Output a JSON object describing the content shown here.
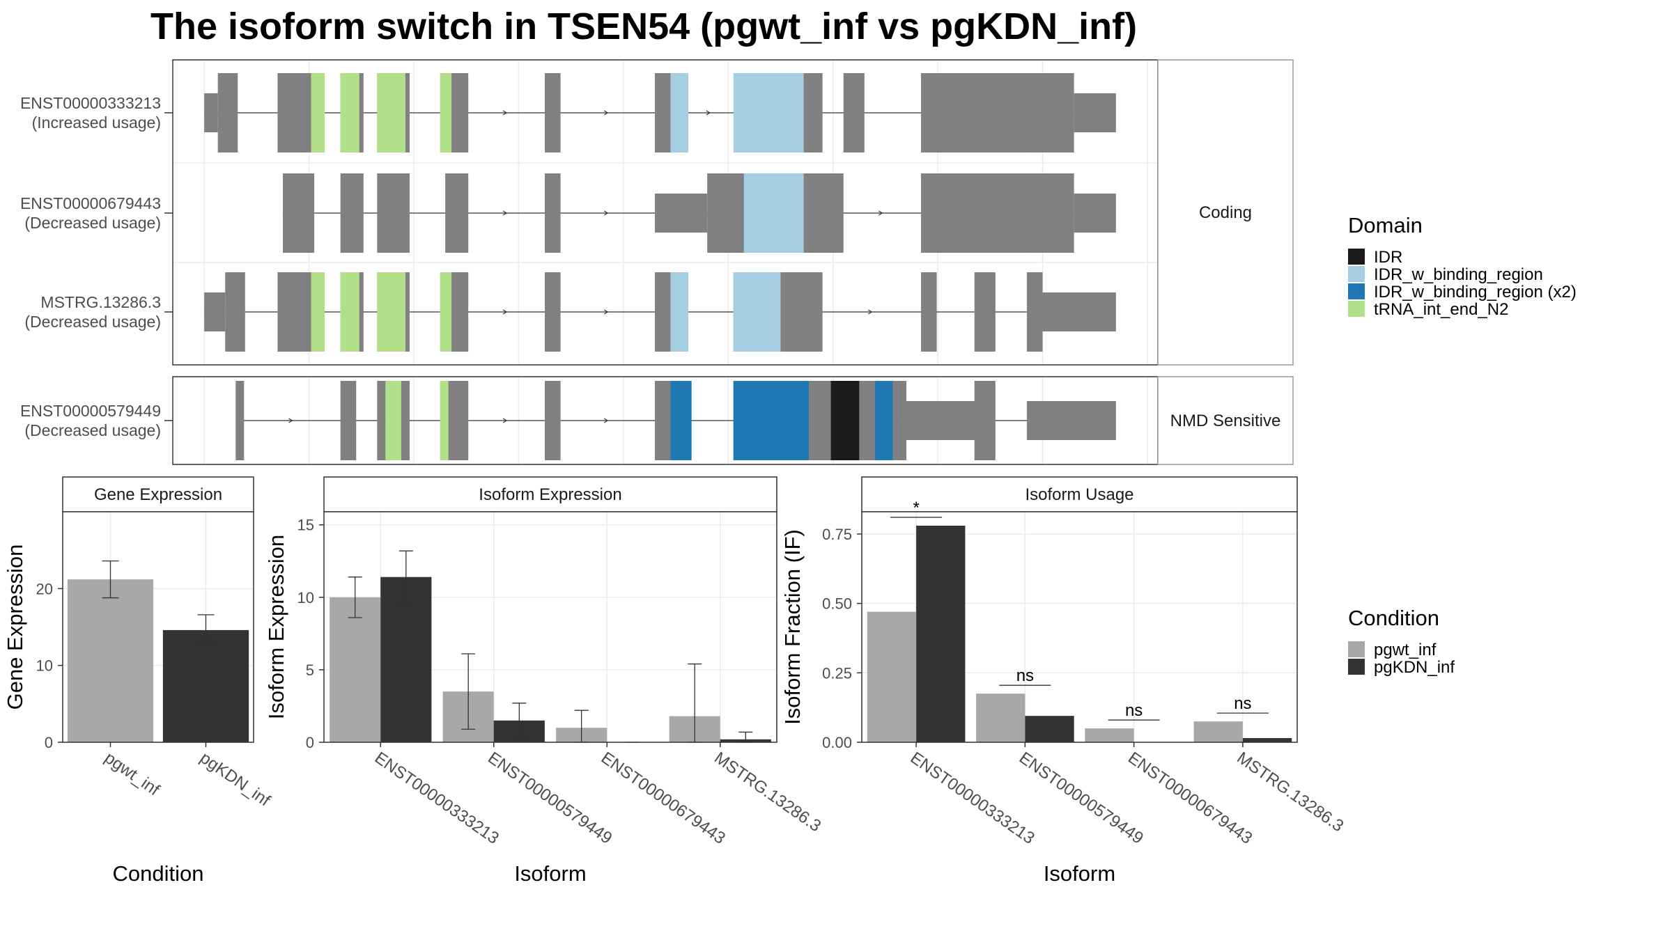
{
  "title": "The isoform switch in TSEN54 (pgwt_inf vs pgKDN_inf)",
  "colors": {
    "exon": "#808080",
    "IDR": "#1a1a1a",
    "IDR_w_binding_region": "#a6cee3",
    "IDR_w_binding_region_x2": "#1f78b4",
    "tRNA_int_end_N2": "#b2df8a",
    "pgwt_inf": "#a8a8a8",
    "pgKDN_inf": "#333333",
    "grid": "#ebebeb",
    "strip_bg": "#ffffff",
    "panel_border": "#333333"
  },
  "chart_data": [
    {
      "type": "gene_structure",
      "panels": [
        {
          "label": "Coding",
          "isoforms": [
            {
              "name": "ENST00000333213",
              "usage": "(Increased usage)",
              "utr": [
                [
                  0,
                  1.3
                ],
                [
                  83,
                  87
                ]
              ],
              "cds": [
                [
                  1.3,
                  3.2
                ],
                [
                  7,
                  10.5
                ],
                [
                  13,
                  15.2
                ],
                [
                  16.5,
                  19.6
                ],
                [
                  23,
                  25.2
                ],
                [
                  32.5,
                  34
                ],
                [
                  43,
                  44.5
                ],
                [
                  52,
                  53.5
                ],
                [
                  55.5,
                  59
                ],
                [
                  61,
                  63
                ],
                [
                  68.4,
                  78.5
                ],
                [
                  78.5,
                  83
                ]
              ],
              "domains": [
                {
                  "domain": "tRNA_int_end_N2",
                  "range": [
                    10.2,
                    11.5
                  ]
                },
                {
                  "domain": "tRNA_int_end_N2",
                  "range": [
                    13,
                    14.8
                  ]
                },
                {
                  "domain": "tRNA_int_end_N2",
                  "range": [
                    16.5,
                    19.2
                  ]
                },
                {
                  "domain": "tRNA_int_end_N2",
                  "range": [
                    22.5,
                    23.6
                  ]
                },
                {
                  "domain": "IDR_w_binding_region",
                  "range": [
                    44.5,
                    46.2
                  ]
                },
                {
                  "domain": "IDR_w_binding_region",
                  "range": [
                    50.5,
                    57.2
                  ]
                }
              ]
            },
            {
              "name": "ENST00000679443",
              "usage": "(Decreased usage)",
              "utr": [
                [
                  43,
                  48
                ],
                [
                  83,
                  87
                ]
              ],
              "cds": [
                [
                  7.5,
                  10.5
                ],
                [
                  13,
                  15.2
                ],
                [
                  16.5,
                  19.6
                ],
                [
                  23,
                  25.2
                ],
                [
                  32.5,
                  34
                ],
                [
                  48,
                  51.5
                ],
                [
                  51.5,
                  57.2
                ],
                [
                  57.2,
                  61
                ],
                [
                  68.4,
                  78.5
                ],
                [
                  78.5,
                  83
                ]
              ],
              "domains": [
                {
                  "domain": "IDR_w_binding_region",
                  "range": [
                    51.5,
                    57.2
                  ]
                }
              ]
            },
            {
              "name": "MSTRG.13286.3",
              "usage": "(Decreased usage)",
              "utr": [
                [
                  0,
                  2
                ],
                [
                  80,
                  87
                ]
              ],
              "cds": [
                [
                  2,
                  3.9
                ],
                [
                  7,
                  10.5
                ],
                [
                  13,
                  15.2
                ],
                [
                  16.5,
                  19.6
                ],
                [
                  23,
                  25.2
                ],
                [
                  32.5,
                  34
                ],
                [
                  43,
                  44.5
                ],
                [
                  50.5,
                  55
                ],
                [
                  55,
                  59
                ],
                [
                  68.4,
                  69.9
                ],
                [
                  73.5,
                  75.5
                ],
                [
                  78.5,
                  80
                ]
              ],
              "domains": [
                {
                  "domain": "tRNA_int_end_N2",
                  "range": [
                    10.2,
                    11.5
                  ]
                },
                {
                  "domain": "tRNA_int_end_N2",
                  "range": [
                    13,
                    14.8
                  ]
                },
                {
                  "domain": "tRNA_int_end_N2",
                  "range": [
                    16.5,
                    19.2
                  ]
                },
                {
                  "domain": "tRNA_int_end_N2",
                  "range": [
                    22.5,
                    23.6
                  ]
                },
                {
                  "domain": "IDR_w_binding_region",
                  "range": [
                    44.5,
                    46.2
                  ]
                },
                {
                  "domain": "IDR_w_binding_region",
                  "range": [
                    50.5,
                    55
                  ]
                }
              ]
            }
          ]
        },
        {
          "label": "NMD Sensitive",
          "isoforms": [
            {
              "name": "ENST00000579449",
              "usage": "(Decreased usage)",
              "utr": [
                [
                  67,
                  74
                ],
                [
                  78.5,
                  87
                ]
              ],
              "cds": [
                [
                  3,
                  3.8
                ],
                [
                  13,
                  14.5
                ],
                [
                  16.5,
                  17.3
                ],
                [
                  17.3,
                  19.6
                ],
                [
                  23,
                  25.2
                ],
                [
                  32.5,
                  34
                ],
                [
                  43,
                  44.5
                ],
                [
                  44.5,
                  46.5
                ],
                [
                  50.5,
                  57.7
                ],
                [
                  57.7,
                  66.2
                ],
                [
                  66.2,
                  67
                ],
                [
                  73.5,
                  75.5
                ]
              ],
              "domains": [
                {
                  "domain": "tRNA_int_end_N2",
                  "range": [
                    17.3,
                    18.8
                  ]
                },
                {
                  "domain": "tRNA_int_end_N2",
                  "range": [
                    22.5,
                    23.3
                  ]
                },
                {
                  "domain": "IDR_w_binding_region_x2",
                  "range": [
                    44.5,
                    46.5
                  ]
                },
                {
                  "domain": "IDR_w_binding_region_x2",
                  "range": [
                    50.5,
                    57.7
                  ]
                },
                {
                  "domain": "IDR",
                  "range": [
                    59.8,
                    62.5
                  ]
                },
                {
                  "domain": "IDR_w_binding_region_x2",
                  "range": [
                    64,
                    65.7
                  ]
                }
              ]
            }
          ]
        }
      ],
      "legend": {
        "title": "Domain",
        "items": [
          {
            "key": "IDR",
            "label": "IDR"
          },
          {
            "key": "IDR_w_binding_region",
            "label": "IDR_w_binding_region"
          },
          {
            "key": "IDR_w_binding_region_x2",
            "label": "IDR_w_binding_region (x2)"
          },
          {
            "key": "tRNA_int_end_N2",
            "label": "tRNA_int_end_N2"
          }
        ]
      }
    },
    {
      "type": "bar",
      "strip": "Gene Expression",
      "xlabel": "Condition",
      "ylabel": "Gene Expression",
      "ylim": [
        0,
        30
      ],
      "yticks": [
        0,
        10,
        20
      ],
      "categories": [
        "pgwt_inf",
        "pgKDN_inf"
      ],
      "values": [
        21.2,
        14.6
      ],
      "errors": [
        [
          18.8,
          23.6
        ],
        [
          12.7,
          16.6
        ]
      ],
      "colors": [
        "pgwt_inf",
        "pgKDN_inf"
      ]
    },
    {
      "type": "bar",
      "strip": "Isoform Expression",
      "xlabel": "Isoform",
      "ylabel": "Isoform Expression",
      "ylim": [
        0,
        15.9
      ],
      "yticks": [
        0,
        5,
        10,
        15
      ],
      "categories": [
        "ENST00000333213",
        "ENST00000579449",
        "ENST00000679443",
        "MSTRG.13286.3"
      ],
      "series": [
        {
          "key": "pgwt_inf",
          "values": [
            10.0,
            3.5,
            1.0,
            1.8
          ],
          "errors": [
            [
              8.6,
              11.4
            ],
            [
              0.9,
              6.1
            ],
            [
              0.0,
              2.2
            ],
            [
              0.0,
              5.4
            ]
          ]
        },
        {
          "key": "pgKDN_inf",
          "values": [
            11.4,
            1.5,
            0.0,
            0.2
          ],
          "errors": [
            [
              9.6,
              13.2
            ],
            [
              0.4,
              2.7
            ],
            [
              0.0,
              0.0
            ],
            [
              0.0,
              0.7
            ]
          ]
        }
      ]
    },
    {
      "type": "bar",
      "strip": "Isoform Usage",
      "xlabel": "Isoform",
      "ylabel": "Isoform Fraction (IF)",
      "ylim": [
        0,
        0.83
      ],
      "yticks": [
        0,
        0.25,
        0.5,
        0.75
      ],
      "ytick_labels": [
        "0.00",
        "0.25",
        "0.50",
        "0.75"
      ],
      "categories": [
        "ENST00000333213",
        "ENST00000579449",
        "ENST00000679443",
        "MSTRG.13286.3"
      ],
      "series": [
        {
          "key": "pgwt_inf",
          "values": [
            0.47,
            0.175,
            0.05,
            0.075
          ]
        },
        {
          "key": "pgKDN_inf",
          "values": [
            0.78,
            0.095,
            0.0,
            0.015
          ]
        }
      ],
      "significance": [
        "*",
        "ns",
        "ns",
        "ns"
      ]
    }
  ],
  "condition_legend": {
    "title": "Condition",
    "items": [
      {
        "key": "pgwt_inf",
        "label": "pgwt_inf"
      },
      {
        "key": "pgKDN_inf",
        "label": "pgKDN_inf"
      }
    ]
  }
}
